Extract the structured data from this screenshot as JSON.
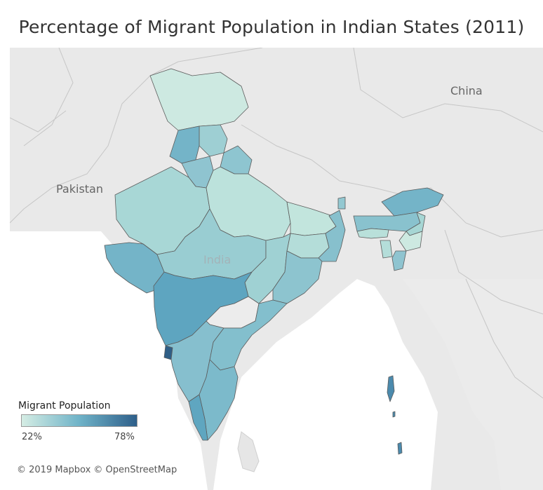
{
  "title": "Percentage of Migrant Population in Indian States (2011)",
  "labels": {
    "china": "China",
    "pakistan": "Pakistan",
    "india": "India"
  },
  "legend": {
    "title": "Migrant Population",
    "min_label": "22%",
    "max_label": "78%",
    "min_color": "#d5ede4",
    "max_color": "#2e5f8a"
  },
  "attribution": "© 2019 Mapbox © OpenStreetMap",
  "colors": {
    "background_land": "#e8e8e8",
    "sea": "#ffffff",
    "border": "#c4c4c4",
    "state_outline": "#5c5c5c"
  }
}
